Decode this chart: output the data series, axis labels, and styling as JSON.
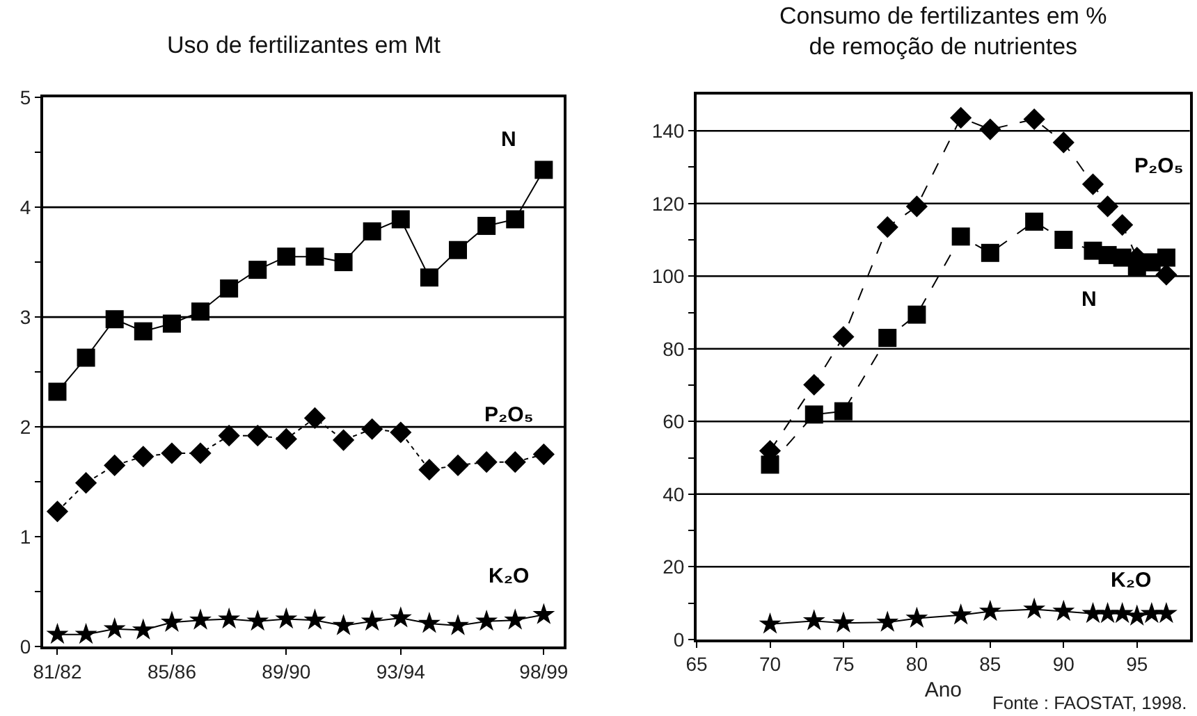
{
  "chart_data": [
    {
      "type": "line",
      "title": "Uso de fertilizantes em Mt",
      "categories": [
        "81/82",
        null,
        null,
        null,
        "85/86",
        null,
        null,
        null,
        "89/90",
        null,
        null,
        null,
        "93/94",
        null,
        null,
        null,
        null,
        "98/99"
      ],
      "series": [
        {
          "name": "N",
          "color": "#000000",
          "marker": "square",
          "line_style": "solid",
          "values": [
            2.32,
            2.63,
            2.98,
            2.87,
            2.94,
            3.05,
            3.26,
            3.43,
            3.55,
            3.55,
            3.5,
            3.78,
            3.89,
            3.36,
            3.61,
            3.83,
            3.89,
            4.34
          ]
        },
        {
          "name": "P₂O₅",
          "color": "#000000",
          "marker": "diamond",
          "line_style": "dotted",
          "values": [
            1.23,
            1.49,
            1.65,
            1.73,
            1.76,
            1.76,
            1.92,
            1.92,
            1.89,
            2.08,
            1.88,
            1.98,
            1.95,
            1.61,
            1.65,
            1.68,
            1.68,
            1.75
          ]
        },
        {
          "name": "K₂O",
          "color": "#000000",
          "marker": "star",
          "line_style": "solid",
          "values": [
            0.11,
            0.11,
            0.16,
            0.15,
            0.22,
            0.24,
            0.25,
            0.23,
            0.25,
            0.24,
            0.19,
            0.23,
            0.26,
            0.21,
            0.19,
            0.23,
            0.24,
            0.29
          ]
        }
      ],
      "ylim": [
        0,
        5
      ],
      "yticks": [
        0,
        {
          "value": 0.5,
          "label": null
        },
        1,
        {
          "value": 1.5,
          "label": null
        },
        2,
        {
          "value": 2.5,
          "label": null
        },
        3,
        {
          "value": 3.5,
          "label": null
        },
        4,
        {
          "value": 4.5,
          "label": null
        },
        5
      ],
      "ref_lines": [
        {
          "axis": "y",
          "value": 2,
          "color": "#000000"
        },
        {
          "axis": "y",
          "value": 3,
          "color": "#000000"
        },
        {
          "axis": "y",
          "value": 4,
          "color": "#000000"
        }
      ]
    },
    {
      "type": "line",
      "title": "Consumo de fertilizantes em %\nde remoção de nutrientes",
      "xlabel": "Ano",
      "annotations": [
        "Fonte : FAOSTAT, 1998."
      ],
      "series": [
        {
          "name": "P₂O₅",
          "color": "#000000",
          "marker": "diamond",
          "line_style": "dashed",
          "x": [
            70,
            73,
            75,
            78,
            80,
            83,
            85,
            88,
            90,
            92,
            93,
            94,
            95,
            97
          ],
          "values": [
            51.9,
            70.1,
            83.3,
            113.5,
            119.2,
            143.6,
            140.4,
            143.2,
            136.8,
            125.3,
            119.2,
            114.1,
            105.1,
            100.4
          ]
        },
        {
          "name": "N",
          "color": "#000000",
          "marker": "square",
          "line_style": "dashed",
          "x": [
            70,
            73,
            75,
            78,
            80,
            83,
            85,
            88,
            90,
            92,
            93,
            94,
            95,
            96,
            97
          ],
          "values": [
            48.1,
            61.9,
            62.8,
            83,
            89.4,
            110.9,
            106.4,
            115,
            110,
            107,
            105.8,
            105.1,
            102.6,
            103.8,
            105.1
          ]
        },
        {
          "name": "K₂O",
          "color": "#000000",
          "marker": "star",
          "line_style": "solid",
          "x": [
            70,
            73,
            75,
            78,
            80,
            83,
            85,
            88,
            90,
            92,
            93,
            94,
            95,
            96,
            97
          ],
          "values": [
            4.2,
            5.1,
            4.5,
            4.7,
            5.8,
            6.7,
            7.7,
            8.3,
            7.7,
            7.1,
            7.1,
            7.1,
            6.4,
            7.1,
            7.1
          ]
        }
      ],
      "xlim": [
        65,
        98.6
      ],
      "xticks": [
        65,
        70,
        75,
        80,
        85,
        90,
        95
      ],
      "ylim": [
        0,
        150
      ],
      "yticks": [
        0,
        {
          "value": 10,
          "label": null
        },
        20,
        {
          "value": 30,
          "label": null
        },
        40,
        {
          "value": 50,
          "label": null
        },
        60,
        {
          "value": 70,
          "label": null
        },
        80,
        {
          "value": 90,
          "label": null
        },
        100,
        {
          "value": 110,
          "label": null
        },
        120,
        {
          "value": 130,
          "label": null
        },
        140
      ],
      "ref_lines": [
        {
          "axis": "y",
          "value": 20,
          "color": "#000000"
        },
        {
          "axis": "y",
          "value": 40,
          "color": "#000000"
        },
        {
          "axis": "y",
          "value": 60,
          "color": "#000000"
        },
        {
          "axis": "y",
          "value": 80,
          "color": "#000000"
        },
        {
          "axis": "y",
          "value": 100,
          "color": "#000000"
        },
        {
          "axis": "y",
          "value": 120,
          "color": "#000000"
        },
        {
          "axis": "y",
          "value": 140,
          "color": "#000000"
        }
      ]
    }
  ]
}
